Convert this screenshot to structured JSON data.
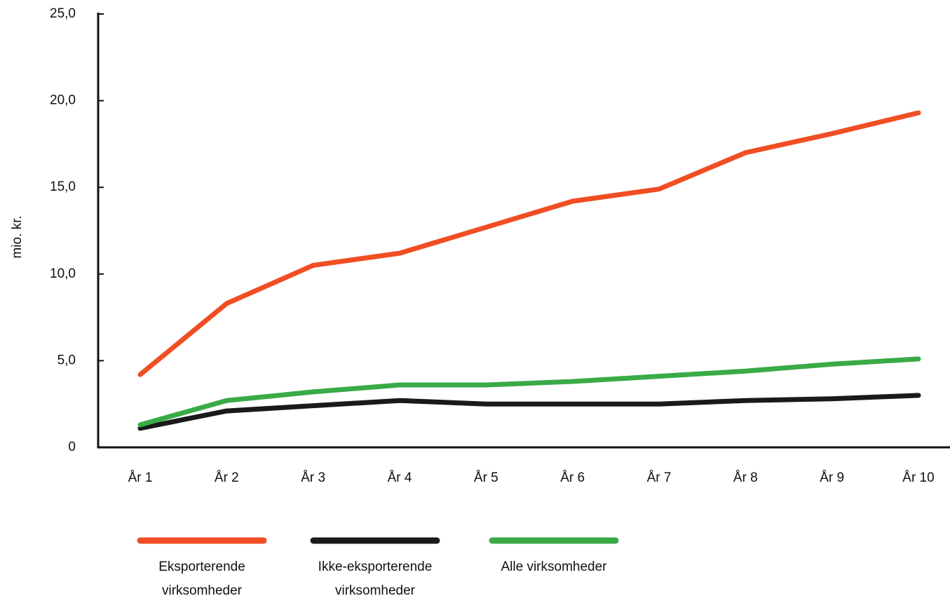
{
  "chart_data": {
    "type": "line",
    "y_label": "mio. kr.",
    "categories": [
      "År 1",
      "År 2",
      "År 3",
      "År 4",
      "År 5",
      "År 6",
      "År 7",
      "År 8",
      "År 9",
      "År 10"
    ],
    "series": [
      {
        "name": "Eksporterende virksomheder",
        "color": "#f04e23",
        "values": [
          4.2,
          8.3,
          10.5,
          11.2,
          12.7,
          14.2,
          14.9,
          17.0,
          18.1,
          19.3
        ]
      },
      {
        "name": "Ikke-eksporterende virksomheder",
        "color": "#1a1a1a",
        "values": [
          1.1,
          2.1,
          2.4,
          2.7,
          2.5,
          2.5,
          2.5,
          2.7,
          2.8,
          3.0
        ]
      },
      {
        "name": "Alle virksomheder",
        "color": "#3aaa47",
        "values": [
          1.3,
          2.7,
          3.2,
          3.6,
          3.6,
          3.8,
          4.1,
          4.4,
          4.8,
          5.1
        ]
      }
    ],
    "ylim": [
      0,
      25
    ],
    "yticks": [
      0,
      {
        "value": 5,
        "label": "5,0"
      },
      {
        "value": 10,
        "label": "10,0"
      },
      {
        "value": 15,
        "label": "15,0"
      },
      {
        "value": 20,
        "label": "20,0"
      },
      {
        "value": 25,
        "label": "25,0"
      }
    ],
    "grid": false,
    "legend": "bottom"
  }
}
